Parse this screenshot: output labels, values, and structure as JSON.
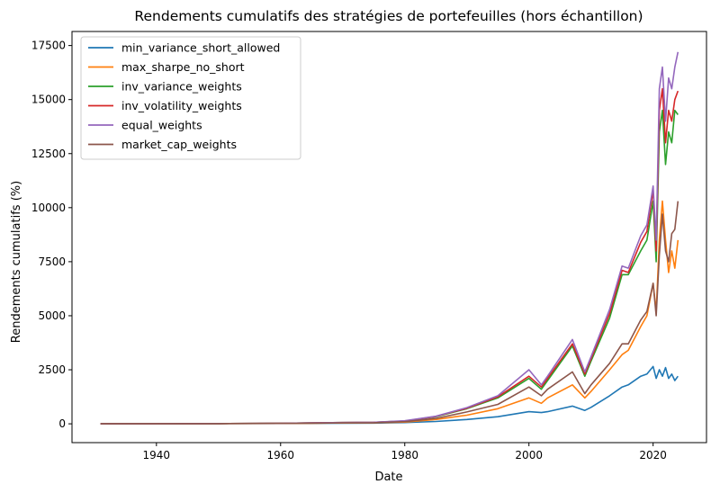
{
  "chart_data": {
    "type": "line",
    "title": "Rendements cumulatifs des stratégies de portefeuilles (hors échantillon)",
    "xlabel": "Date",
    "ylabel": "Rendements cumulatifs (%)",
    "xlim": [
      1926.4,
      2028.6
    ],
    "ylim": [
      -870,
      18150
    ],
    "xticks": [
      1940,
      1960,
      1980,
      2000,
      2020
    ],
    "yticks": [
      0,
      2500,
      5000,
      7500,
      10000,
      12500,
      15000,
      17500
    ],
    "grid": false,
    "legend_position": "upper-left",
    "x": [
      1931,
      1940,
      1950,
      1960,
      1965,
      1970,
      1975,
      1980,
      1985,
      1990,
      1995,
      2000,
      2002,
      2003,
      2007,
      2009,
      2010,
      2013,
      2015,
      2016,
      2018,
      2019,
      2020,
      2020.5,
      2021,
      2021.5,
      2022,
      2022.5,
      2023,
      2023.5,
      2024
    ],
    "series": [
      {
        "name": "min_variance_short_allowed",
        "color": "#1f77b4",
        "values": [
          0,
          3,
          8,
          15,
          20,
          30,
          35,
          60,
          110,
          200,
          330,
          560,
          520,
          560,
          820,
          620,
          760,
          1300,
          1700,
          1800,
          2200,
          2300,
          2650,
          2100,
          2500,
          2200,
          2600,
          2100,
          2300,
          2000,
          2200
        ]
      },
      {
        "name": "max_sharpe_no_short",
        "color": "#ff7f0e",
        "values": [
          0,
          3,
          8,
          18,
          30,
          40,
          45,
          80,
          200,
          400,
          700,
          1200,
          950,
          1200,
          1800,
          1200,
          1500,
          2500,
          3200,
          3400,
          4500,
          5000,
          6500,
          5200,
          8500,
          10300,
          8500,
          7000,
          8000,
          7200,
          8500
        ]
      },
      {
        "name": "inv_variance_weights",
        "color": "#2ca02c",
        "values": [
          0,
          5,
          12,
          25,
          40,
          60,
          70,
          130,
          330,
          700,
          1200,
          2100,
          1600,
          2000,
          3600,
          2200,
          2900,
          4900,
          6900,
          6900,
          8000,
          8500,
          10300,
          7500,
          13500,
          14500,
          12000,
          13500,
          13000,
          14500,
          14300
        ]
      },
      {
        "name": "inv_volatility_weights",
        "color": "#d62728",
        "values": [
          0,
          5,
          12,
          25,
          40,
          60,
          70,
          130,
          340,
          720,
          1250,
          2200,
          1700,
          2100,
          3700,
          2300,
          3000,
          5100,
          7100,
          7000,
          8400,
          8900,
          10800,
          8000,
          14500,
          15500,
          13000,
          14500,
          14000,
          15000,
          15400
        ]
      },
      {
        "name": "equal_weights",
        "color": "#9467bd",
        "values": [
          0,
          5,
          12,
          25,
          40,
          60,
          70,
          140,
          350,
          750,
          1300,
          2500,
          1800,
          2200,
          3900,
          2400,
          3100,
          5300,
          7300,
          7200,
          8700,
          9200,
          11000,
          8500,
          15500,
          16500,
          14000,
          16000,
          15500,
          16500,
          17200
        ]
      },
      {
        "name": "market_cap_weights",
        "color": "#8c564b",
        "values": [
          0,
          3,
          10,
          20,
          30,
          45,
          50,
          100,
          250,
          550,
          900,
          1700,
          1300,
          1600,
          2400,
          1400,
          1800,
          2800,
          3700,
          3700,
          4800,
          5200,
          6500,
          5000,
          7800,
          9700,
          8000,
          7500,
          8800,
          9000,
          10300
        ]
      }
    ]
  }
}
